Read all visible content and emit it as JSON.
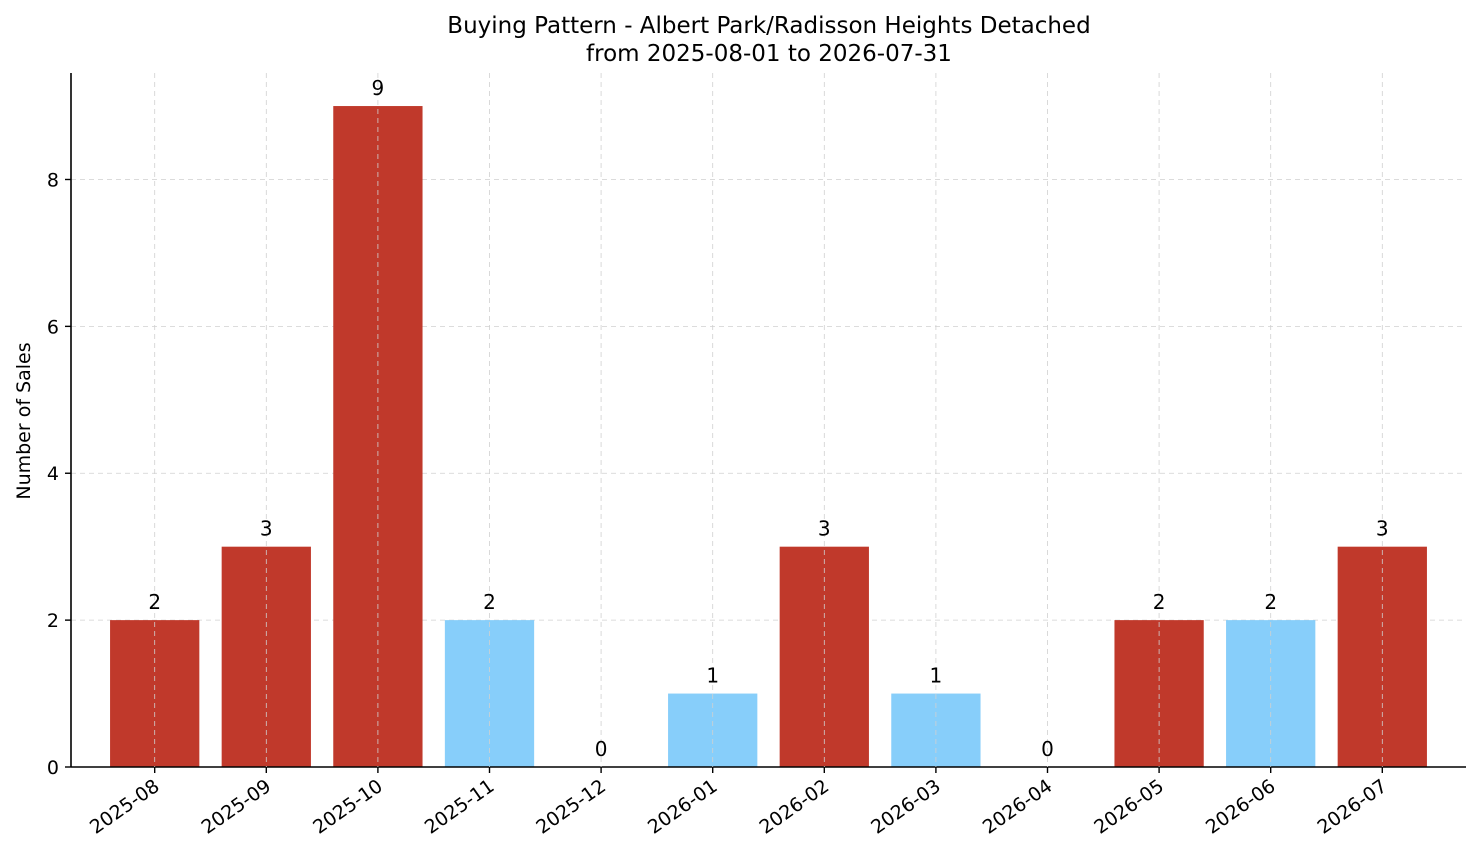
{
  "chart_data": {
    "type": "bar",
    "title": "Buying Pattern - Albert Park/Radisson Heights Detached",
    "subtitle": "from 2025-08-01 to 2026-07-31",
    "xlabel": "",
    "ylabel": "Number of Sales",
    "categories": [
      "2025-08",
      "2025-09",
      "2025-10",
      "2025-11",
      "2025-12",
      "2026-01",
      "2026-02",
      "2026-03",
      "2026-04",
      "2026-05",
      "2026-06",
      "2026-07"
    ],
    "values": [
      2,
      3,
      9,
      2,
      0,
      1,
      3,
      1,
      0,
      2,
      2,
      3
    ],
    "bar_colors": [
      "#c0392b",
      "#c0392b",
      "#c0392b",
      "#87cefa",
      "#87cefa",
      "#87cefa",
      "#c0392b",
      "#87cefa",
      "#87cefa",
      "#c0392b",
      "#87cefa",
      "#c0392b"
    ],
    "data_labels": [
      "2",
      "3",
      "9",
      "2",
      "0",
      "1",
      "3",
      "1",
      "0",
      "2",
      "2",
      "3"
    ],
    "ylim": [
      0,
      9.45
    ],
    "yticks": [
      0,
      2,
      4,
      6,
      8
    ],
    "grid": true,
    "legend": "none"
  }
}
